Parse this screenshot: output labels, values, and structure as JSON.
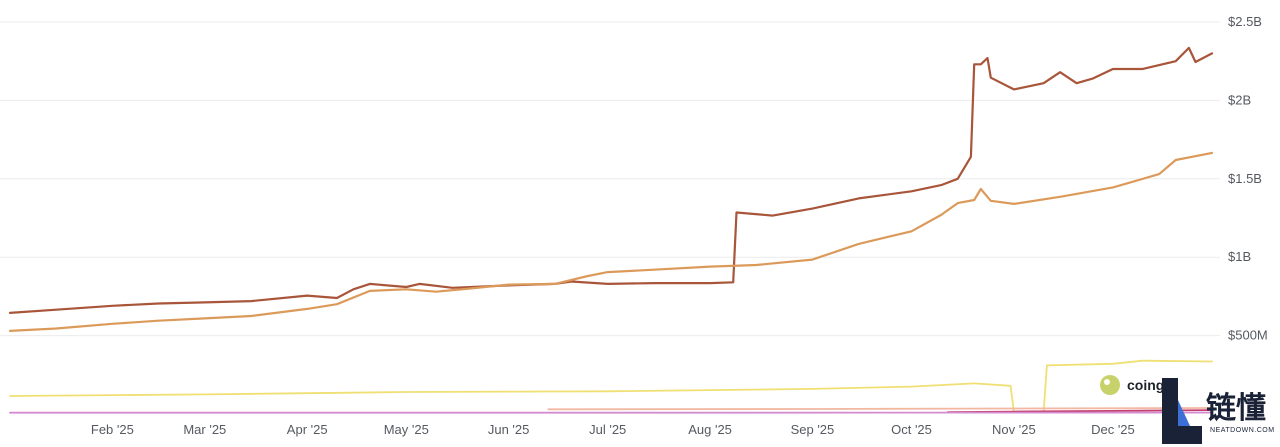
{
  "chart_data": {
    "type": "line",
    "y_axis": {
      "position": "right",
      "ticks": [
        {
          "value": 500000000,
          "label": "$500M"
        },
        {
          "value": 1000000000,
          "label": "$1B"
        },
        {
          "value": 1500000000,
          "label": "$1.5B"
        },
        {
          "value": 2000000000,
          "label": "$2B"
        },
        {
          "value": 2500000000,
          "label": "$2.5B"
        }
      ],
      "ylim": [
        0,
        2500000000
      ]
    },
    "x_axis": {
      "xlim": [
        "2025-01-01",
        "2025-12-31"
      ],
      "ticks": [
        {
          "date": "2025-02-01",
          "label": "Feb '25"
        },
        {
          "date": "2025-03-01",
          "label": "Mar '25"
        },
        {
          "date": "2025-04-01",
          "label": "Apr '25"
        },
        {
          "date": "2025-05-01",
          "label": "May '25"
        },
        {
          "date": "2025-06-01",
          "label": "Jun '25"
        },
        {
          "date": "2025-07-01",
          "label": "Jul '25"
        },
        {
          "date": "2025-08-01",
          "label": "Aug '25"
        },
        {
          "date": "2025-09-01",
          "label": "Sep '25"
        },
        {
          "date": "2025-10-01",
          "label": "Oct '25"
        },
        {
          "date": "2025-11-01",
          "label": "Nov '25"
        },
        {
          "date": "2025-12-01",
          "label": "Dec '25"
        }
      ]
    },
    "grid": true,
    "legend": "none",
    "series": [
      {
        "color": "#a8553a",
        "points": [
          [
            "2025-01-01",
            645000000
          ],
          [
            "2025-01-15",
            665000000
          ],
          [
            "2025-02-01",
            690000000
          ],
          [
            "2025-02-15",
            705000000
          ],
          [
            "2025-03-01",
            712000000
          ],
          [
            "2025-03-15",
            720000000
          ],
          [
            "2025-04-01",
            755000000
          ],
          [
            "2025-04-10",
            740000000
          ],
          [
            "2025-04-15",
            795000000
          ],
          [
            "2025-04-20",
            830000000
          ],
          [
            "2025-05-01",
            810000000
          ],
          [
            "2025-05-05",
            830000000
          ],
          [
            "2025-05-15",
            805000000
          ],
          [
            "2025-06-01",
            820000000
          ],
          [
            "2025-06-15",
            830000000
          ],
          [
            "2025-06-20",
            845000000
          ],
          [
            "2025-07-01",
            830000000
          ],
          [
            "2025-07-15",
            835000000
          ],
          [
            "2025-08-01",
            835000000
          ],
          [
            "2025-08-08",
            840000000
          ],
          [
            "2025-08-09",
            1285000000
          ],
          [
            "2025-08-20",
            1265000000
          ],
          [
            "2025-09-01",
            1310000000
          ],
          [
            "2025-09-15",
            1375000000
          ],
          [
            "2025-10-01",
            1420000000
          ],
          [
            "2025-10-10",
            1460000000
          ],
          [
            "2025-10-15",
            1500000000
          ],
          [
            "2025-10-19",
            1640000000
          ],
          [
            "2025-10-20",
            2230000000
          ],
          [
            "2025-10-22",
            2230000000
          ],
          [
            "2025-10-24",
            2270000000
          ],
          [
            "2025-10-25",
            2145000000
          ],
          [
            "2025-11-01",
            2070000000
          ],
          [
            "2025-11-10",
            2110000000
          ],
          [
            "2025-11-15",
            2180000000
          ],
          [
            "2025-11-20",
            2110000000
          ],
          [
            "2025-11-25",
            2140000000
          ],
          [
            "2025-12-01",
            2200000000
          ],
          [
            "2025-12-10",
            2200000000
          ],
          [
            "2025-12-20",
            2250000000
          ],
          [
            "2025-12-24",
            2335000000
          ],
          [
            "2025-12-26",
            2245000000
          ],
          [
            "2025-12-31",
            2300000000
          ]
        ]
      },
      {
        "color": "#dc9a5a",
        "points": [
          [
            "2025-01-01",
            530000000
          ],
          [
            "2025-01-15",
            545000000
          ],
          [
            "2025-02-01",
            575000000
          ],
          [
            "2025-02-15",
            595000000
          ],
          [
            "2025-03-01",
            610000000
          ],
          [
            "2025-03-15",
            625000000
          ],
          [
            "2025-04-01",
            670000000
          ],
          [
            "2025-04-10",
            700000000
          ],
          [
            "2025-04-20",
            785000000
          ],
          [
            "2025-05-01",
            795000000
          ],
          [
            "2025-05-10",
            780000000
          ],
          [
            "2025-05-20",
            800000000
          ],
          [
            "2025-06-01",
            825000000
          ],
          [
            "2025-06-15",
            830000000
          ],
          [
            "2025-06-25",
            880000000
          ],
          [
            "2025-07-01",
            905000000
          ],
          [
            "2025-07-15",
            920000000
          ],
          [
            "2025-08-01",
            940000000
          ],
          [
            "2025-08-15",
            950000000
          ],
          [
            "2025-09-01",
            985000000
          ],
          [
            "2025-09-15",
            1085000000
          ],
          [
            "2025-10-01",
            1165000000
          ],
          [
            "2025-10-10",
            1270000000
          ],
          [
            "2025-10-15",
            1345000000
          ],
          [
            "2025-10-20",
            1365000000
          ],
          [
            "2025-10-22",
            1435000000
          ],
          [
            "2025-10-25",
            1360000000
          ],
          [
            "2025-11-01",
            1340000000
          ],
          [
            "2025-11-15",
            1385000000
          ],
          [
            "2025-12-01",
            1445000000
          ],
          [
            "2025-12-15",
            1530000000
          ],
          [
            "2025-12-20",
            1620000000
          ],
          [
            "2025-12-31",
            1665000000
          ]
        ]
      },
      {
        "color": "#f0df73",
        "points": [
          [
            "2025-01-01",
            115000000
          ],
          [
            "2025-03-01",
            125000000
          ],
          [
            "2025-05-01",
            140000000
          ],
          [
            "2025-07-01",
            145000000
          ],
          [
            "2025-09-01",
            160000000
          ],
          [
            "2025-10-01",
            175000000
          ],
          [
            "2025-10-20",
            195000000
          ],
          [
            "2025-10-31",
            180000000
          ],
          [
            "2025-11-01",
            10000000
          ],
          [
            "2025-11-10",
            10000000
          ],
          [
            "2025-11-11",
            310000000
          ],
          [
            "2025-12-01",
            320000000
          ],
          [
            "2025-12-10",
            340000000
          ],
          [
            "2025-12-31",
            335000000
          ]
        ]
      },
      {
        "color": "#f2b8a2",
        "points": [
          [
            "2025-06-13",
            30000000
          ],
          [
            "2025-09-01",
            32000000
          ],
          [
            "2025-11-01",
            35000000
          ],
          [
            "2025-12-31",
            38000000
          ]
        ]
      },
      {
        "color": "#c43e6e",
        "points": [
          [
            "2025-10-12",
            12000000
          ],
          [
            "2025-11-01",
            15000000
          ],
          [
            "2025-12-01",
            20000000
          ],
          [
            "2025-12-31",
            25000000
          ]
        ]
      },
      {
        "color": "#d48cd0",
        "points": [
          [
            "2025-01-01",
            8000000
          ],
          [
            "2025-06-01",
            8000000
          ],
          [
            "2025-12-31",
            9000000
          ]
        ]
      }
    ],
    "watermark_text": "coing"
  }
}
